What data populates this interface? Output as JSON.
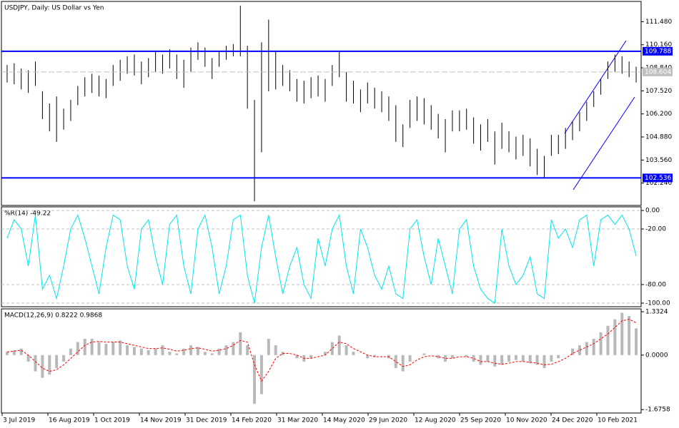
{
  "chart_data": [
    {
      "type": "ohlc",
      "title": "USDJPY, Daily:  US Dollar vs Yen",
      "color": "#000000",
      "high": [
        109.0,
        109.1,
        108.8,
        108.7,
        109.2,
        107.5,
        106.8,
        107.2,
        106.5,
        107.0,
        107.8,
        108.3,
        108.5,
        108.4,
        108.2,
        109.0,
        109.3,
        109.5,
        109.6,
        109.2,
        109.4,
        109.8,
        109.6,
        109.9,
        109.6,
        109.3,
        110.0,
        110.3,
        110.0,
        109.4,
        109.8,
        110.1,
        110.2,
        112.4,
        110.1,
        107.0,
        110.3,
        111.6,
        109.8,
        109.0,
        108.7,
        108.2,
        108.1,
        108.3,
        108.4,
        108.2,
        109.0,
        109.8,
        108.6,
        108.1,
        107.6,
        108.0,
        107.7,
        107.5,
        107.2,
        106.7,
        105.6,
        107.0,
        107.2,
        107.1,
        106.7,
        106.2,
        105.9,
        106.4,
        106.4,
        106.5,
        106.0,
        105.6,
        105.9,
        105.2,
        105.7,
        105.2,
        104.9,
        105.0,
        104.8,
        104.2,
        103.8,
        105.0,
        105.0,
        105.4,
        105.8,
        106.3,
        106.9,
        107.5,
        108.2,
        109.2,
        109.6,
        109.5,
        109.2,
        108.9
      ],
      "low": [
        108.0,
        107.9,
        107.6,
        107.4,
        107.8,
        105.9,
        105.2,
        104.6,
        105.3,
        105.8,
        106.7,
        107.2,
        107.4,
        107.2,
        107.1,
        107.8,
        108.1,
        108.5,
        108.4,
        107.9,
        108.3,
        108.6,
        108.5,
        108.8,
        108.2,
        107.7,
        108.6,
        109.3,
        108.9,
        108.2,
        108.9,
        109.3,
        109.5,
        109.5,
        106.5,
        101.2,
        104.0,
        107.5,
        107.6,
        107.8,
        107.5,
        106.9,
        106.8,
        107.1,
        107.2,
        106.9,
        107.8,
        108.3,
        106.9,
        106.8,
        106.3,
        106.8,
        106.5,
        106.3,
        105.8,
        104.6,
        104.3,
        105.4,
        105.8,
        105.6,
        105.3,
        104.8,
        104.0,
        105.2,
        105.2,
        105.3,
        104.5,
        104.1,
        104.6,
        103.3,
        104.2,
        104.0,
        103.6,
        103.8,
        103.2,
        102.7,
        102.5,
        103.8,
        103.9,
        104.2,
        104.7,
        105.2,
        105.8,
        106.6,
        107.3,
        108.2,
        108.6,
        108.5,
        108.3,
        108.0
      ],
      "ylim": [
        100.96,
        112.64
      ],
      "yticks": [
        {
          "value": 102.24,
          "label": "102.240"
        },
        {
          "value": 103.56,
          "label": "103.560"
        },
        {
          "value": 104.88,
          "label": "104.880"
        },
        {
          "value": 106.2,
          "label": "106.200"
        },
        {
          "value": 107.52,
          "label": "107.520"
        },
        {
          "value": 108.84,
          "label": "108.840"
        },
        {
          "value": 110.16,
          "label": "110.160"
        },
        {
          "value": 111.48,
          "label": "111.480"
        }
      ],
      "levels": [
        109.788,
        102.536
      ],
      "level_color": "#0000ff",
      "current": 108.604
    },
    {
      "type": "line",
      "title": "%R(14) -49.22",
      "color": "#00e5ee",
      "values": [
        -30,
        -10,
        -20,
        -60,
        -5,
        -85,
        -70,
        -95,
        -60,
        -20,
        -5,
        -30,
        -60,
        -90,
        -40,
        -5,
        -10,
        -60,
        -85,
        -20,
        -10,
        -50,
        -80,
        -15,
        -5,
        -60,
        -90,
        -20,
        -5,
        -40,
        -90,
        -60,
        -10,
        -5,
        -70,
        -100,
        -40,
        -5,
        -50,
        -90,
        -60,
        -40,
        -80,
        -95,
        -30,
        -60,
        -20,
        -5,
        -60,
        -90,
        -20,
        -40,
        -70,
        -85,
        -60,
        -90,
        -95,
        -20,
        -10,
        -50,
        -80,
        -30,
        -60,
        -90,
        -20,
        -10,
        -60,
        -85,
        -95,
        -100,
        -20,
        -60,
        -80,
        -70,
        -50,
        -90,
        -95,
        -10,
        -30,
        -20,
        -40,
        -10,
        -5,
        -60,
        -10,
        -5,
        -15,
        -5,
        -20,
        -49.22
      ],
      "ylim": [
        -103.9,
        3.9
      ],
      "yticks": [
        {
          "value": 0,
          "label": "0.00"
        },
        {
          "value": -20,
          "label": "-20.00"
        },
        {
          "value": -80,
          "label": "-80.00"
        },
        {
          "value": -100,
          "label": "-100.00"
        }
      ]
    },
    {
      "type": "macd",
      "title": "MACD(12,26,9) 0.8222 0.9868",
      "color": "#b8b8b8",
      "signal_color": "#ff0000",
      "histogram": [
        0.1,
        0.15,
        0.2,
        -0.2,
        -0.5,
        -0.7,
        -0.6,
        -0.4,
        -0.2,
        0.2,
        0.4,
        0.5,
        0.5,
        0.4,
        0.35,
        0.4,
        0.45,
        0.3,
        0.25,
        0.2,
        0.15,
        0.2,
        0.3,
        0.1,
        0.05,
        0.2,
        0.3,
        0.25,
        0.1,
        0.05,
        0.2,
        0.3,
        0.4,
        0.7,
        0.3,
        -1.5,
        -1.2,
        0.5,
        0.3,
        0.1,
        0.0,
        -0.1,
        -0.2,
        -0.1,
        0.0,
        0.1,
        0.4,
        0.6,
        0.3,
        0.1,
        0.0,
        -0.1,
        -0.05,
        0.0,
        -0.1,
        -0.4,
        -0.5,
        -0.2,
        0.0,
        0.05,
        0.0,
        -0.1,
        -0.2,
        -0.1,
        0.0,
        -0.05,
        -0.2,
        -0.3,
        -0.2,
        -0.35,
        -0.3,
        -0.2,
        -0.15,
        -0.2,
        -0.25,
        -0.3,
        -0.4,
        -0.2,
        -0.1,
        0.0,
        0.2,
        0.3,
        0.4,
        0.5,
        0.7,
        0.9,
        1.1,
        1.3,
        1.2,
        0.82
      ],
      "signal": [
        0.1,
        0.12,
        0.15,
        0.0,
        -0.2,
        -0.4,
        -0.5,
        -0.45,
        -0.3,
        -0.1,
        0.1,
        0.3,
        0.4,
        0.42,
        0.4,
        0.4,
        0.4,
        0.35,
        0.3,
        0.25,
        0.2,
        0.2,
        0.22,
        0.18,
        0.12,
        0.15,
        0.2,
        0.22,
        0.18,
        0.12,
        0.15,
        0.2,
        0.3,
        0.45,
        0.4,
        -0.3,
        -0.8,
        -0.5,
        -0.1,
        0.05,
        0.05,
        0.0,
        -0.1,
        -0.1,
        -0.05,
        0.0,
        0.2,
        0.4,
        0.35,
        0.2,
        0.1,
        0.0,
        -0.05,
        -0.05,
        -0.05,
        -0.2,
        -0.35,
        -0.3,
        -0.15,
        -0.05,
        -0.02,
        -0.05,
        -0.1,
        -0.1,
        -0.05,
        -0.05,
        -0.1,
        -0.2,
        -0.2,
        -0.25,
        -0.28,
        -0.25,
        -0.2,
        -0.2,
        -0.22,
        -0.25,
        -0.3,
        -0.28,
        -0.2,
        -0.1,
        0.05,
        0.15,
        0.25,
        0.35,
        0.5,
        0.65,
        0.85,
        1.05,
        1.1,
        0.99
      ],
      "ylim": [
        -1.78,
        1.42
      ],
      "yticks": [
        1.3324,
        {
          "value": 0,
          "label": "0.0000"
        },
        -1.6758
      ],
      "x_labels": [
        "3 Jul 2019",
        "16 Aug 2019",
        "1 Oct 2019",
        "14 Nov 2019",
        "31 Dec 2019",
        "14 Feb 2020",
        "31 Mar 2020",
        "14 May 2020",
        "29 Jun 2020",
        "12 Aug 2020",
        "25 Sep 2020",
        "10 Nov 2020",
        "24 Dec 2020",
        "10 Feb 2021"
      ]
    }
  ]
}
